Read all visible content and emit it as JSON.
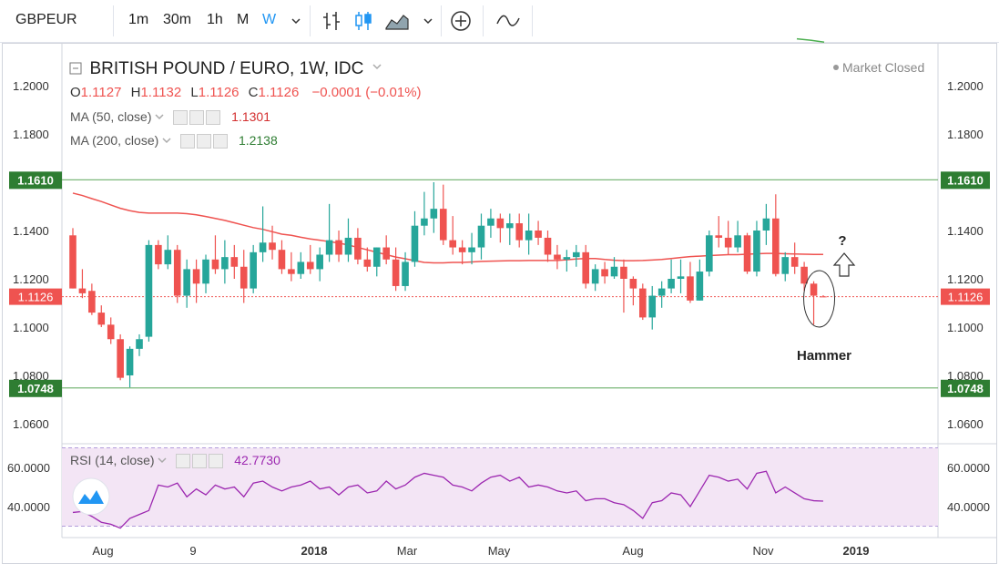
{
  "toolbar": {
    "symbol": "GBPEUR",
    "timeframes": [
      "1m",
      "30m",
      "1h",
      "M",
      "W"
    ],
    "active_timeframe": "W",
    "icons": [
      "chevron-down-icon",
      "bar-chart-icon",
      "candles-icon",
      "area-chart-icon",
      "chevron-down-icon",
      "add-compare-icon",
      "indicators-icon"
    ]
  },
  "legend": {
    "title": "BRITISH POUND / EURO, 1W, IDC",
    "market_status": "Market Closed",
    "ohlc": {
      "o_label": "O",
      "o": "1.1127",
      "h_label": "H",
      "h": "1.1132",
      "l_label": "L",
      "l": "1.1126",
      "c_label": "C",
      "c": "1.1126",
      "change": "−0.0001 (−0.01%)"
    },
    "ma50_label": "MA (50, close)",
    "ma50_value": "1.1301",
    "ma200_label": "MA (200, close)",
    "ma200_value": "1.2138",
    "rsi_label": "RSI (14, close)",
    "rsi_value": "42.7730"
  },
  "colors": {
    "up": "#26a69a",
    "down": "#ef5350",
    "ma50": "#ef5350",
    "ma200": "#4caf50",
    "level": "#2e7d32",
    "rsi": "#9c27b0",
    "rsi_band": "#f3e5f5"
  },
  "chart_data": {
    "type": "candlestick",
    "ylim": [
      1.05,
      1.22
    ],
    "price_ticks": [
      "1.2000",
      "1.1800",
      "1.1400",
      "1.1200",
      "1.1000",
      "1.0800",
      "1.0600"
    ],
    "levels": [
      {
        "label": "1.1610",
        "value": 1.161
      },
      {
        "label": "1.0748",
        "value": 1.0748
      }
    ],
    "last_price": {
      "label": "1.1126",
      "value": 1.1126
    },
    "x_ticks": [
      "Aug",
      "9",
      "2018",
      "Mar",
      "May",
      "Aug",
      "Nov",
      "2019"
    ],
    "annotations": {
      "question": "?",
      "hammer": "Hammer"
    },
    "candles": [
      {
        "o": 1.138,
        "h": 1.141,
        "l": 1.116,
        "c": 1.116
      },
      {
        "o": 1.116,
        "h": 1.124,
        "l": 1.112,
        "c": 1.114
      },
      {
        "o": 1.115,
        "h": 1.118,
        "l": 1.105,
        "c": 1.106
      },
      {
        "o": 1.106,
        "h": 1.109,
        "l": 1.1,
        "c": 1.101
      },
      {
        "o": 1.101,
        "h": 1.104,
        "l": 1.093,
        "c": 1.095
      },
      {
        "o": 1.095,
        "h": 1.097,
        "l": 1.078,
        "c": 1.079
      },
      {
        "o": 1.08,
        "h": 1.092,
        "l": 1.075,
        "c": 1.091
      },
      {
        "o": 1.091,
        "h": 1.097,
        "l": 1.088,
        "c": 1.095
      },
      {
        "o": 1.096,
        "h": 1.136,
        "l": 1.094,
        "c": 1.134
      },
      {
        "o": 1.134,
        "h": 1.136,
        "l": 1.124,
        "c": 1.126
      },
      {
        "o": 1.126,
        "h": 1.138,
        "l": 1.124,
        "c": 1.132
      },
      {
        "o": 1.132,
        "h": 1.134,
        "l": 1.11,
        "c": 1.113
      },
      {
        "o": 1.113,
        "h": 1.128,
        "l": 1.108,
        "c": 1.124
      },
      {
        "o": 1.124,
        "h": 1.128,
        "l": 1.11,
        "c": 1.118
      },
      {
        "o": 1.118,
        "h": 1.13,
        "l": 1.114,
        "c": 1.128
      },
      {
        "o": 1.128,
        "h": 1.138,
        "l": 1.122,
        "c": 1.124
      },
      {
        "o": 1.124,
        "h": 1.136,
        "l": 1.118,
        "c": 1.129
      },
      {
        "o": 1.129,
        "h": 1.134,
        "l": 1.12,
        "c": 1.125
      },
      {
        "o": 1.125,
        "h": 1.132,
        "l": 1.11,
        "c": 1.116
      },
      {
        "o": 1.116,
        "h": 1.134,
        "l": 1.114,
        "c": 1.131
      },
      {
        "o": 1.131,
        "h": 1.15,
        "l": 1.127,
        "c": 1.135
      },
      {
        "o": 1.135,
        "h": 1.142,
        "l": 1.128,
        "c": 1.132
      },
      {
        "o": 1.132,
        "h": 1.136,
        "l": 1.122,
        "c": 1.124
      },
      {
        "o": 1.124,
        "h": 1.131,
        "l": 1.119,
        "c": 1.122
      },
      {
        "o": 1.122,
        "h": 1.131,
        "l": 1.12,
        "c": 1.127
      },
      {
        "o": 1.127,
        "h": 1.134,
        "l": 1.122,
        "c": 1.124
      },
      {
        "o": 1.124,
        "h": 1.133,
        "l": 1.119,
        "c": 1.13
      },
      {
        "o": 1.13,
        "h": 1.151,
        "l": 1.127,
        "c": 1.136
      },
      {
        "o": 1.136,
        "h": 1.14,
        "l": 1.127,
        "c": 1.13
      },
      {
        "o": 1.13,
        "h": 1.145,
        "l": 1.127,
        "c": 1.137
      },
      {
        "o": 1.137,
        "h": 1.141,
        "l": 1.126,
        "c": 1.128
      },
      {
        "o": 1.128,
        "h": 1.133,
        "l": 1.123,
        "c": 1.125
      },
      {
        "o": 1.125,
        "h": 1.133,
        "l": 1.121,
        "c": 1.133
      },
      {
        "o": 1.133,
        "h": 1.138,
        "l": 1.126,
        "c": 1.128
      },
      {
        "o": 1.128,
        "h": 1.133,
        "l": 1.115,
        "c": 1.117
      },
      {
        "o": 1.117,
        "h": 1.131,
        "l": 1.115,
        "c": 1.127
      },
      {
        "o": 1.127,
        "h": 1.148,
        "l": 1.125,
        "c": 1.142
      },
      {
        "o": 1.142,
        "h": 1.156,
        "l": 1.138,
        "c": 1.145
      },
      {
        "o": 1.145,
        "h": 1.16,
        "l": 1.139,
        "c": 1.149
      },
      {
        "o": 1.149,
        "h": 1.159,
        "l": 1.134,
        "c": 1.136
      },
      {
        "o": 1.136,
        "h": 1.146,
        "l": 1.13,
        "c": 1.133
      },
      {
        "o": 1.133,
        "h": 1.136,
        "l": 1.126,
        "c": 1.131
      },
      {
        "o": 1.131,
        "h": 1.139,
        "l": 1.126,
        "c": 1.133
      },
      {
        "o": 1.133,
        "h": 1.147,
        "l": 1.128,
        "c": 1.142
      },
      {
        "o": 1.142,
        "h": 1.149,
        "l": 1.137,
        "c": 1.145
      },
      {
        "o": 1.145,
        "h": 1.147,
        "l": 1.135,
        "c": 1.141
      },
      {
        "o": 1.141,
        "h": 1.147,
        "l": 1.134,
        "c": 1.143
      },
      {
        "o": 1.143,
        "h": 1.147,
        "l": 1.133,
        "c": 1.136
      },
      {
        "o": 1.136,
        "h": 1.147,
        "l": 1.13,
        "c": 1.14
      },
      {
        "o": 1.14,
        "h": 1.144,
        "l": 1.134,
        "c": 1.137
      },
      {
        "o": 1.137,
        "h": 1.14,
        "l": 1.127,
        "c": 1.13
      },
      {
        "o": 1.13,
        "h": 1.134,
        "l": 1.124,
        "c": 1.128
      },
      {
        "o": 1.128,
        "h": 1.132,
        "l": 1.123,
        "c": 1.129
      },
      {
        "o": 1.129,
        "h": 1.134,
        "l": 1.125,
        "c": 1.131
      },
      {
        "o": 1.131,
        "h": 1.134,
        "l": 1.116,
        "c": 1.118
      },
      {
        "o": 1.118,
        "h": 1.126,
        "l": 1.115,
        "c": 1.124
      },
      {
        "o": 1.124,
        "h": 1.127,
        "l": 1.118,
        "c": 1.121
      },
      {
        "o": 1.121,
        "h": 1.129,
        "l": 1.12,
        "c": 1.125
      },
      {
        "o": 1.125,
        "h": 1.128,
        "l": 1.106,
        "c": 1.12
      },
      {
        "o": 1.12,
        "h": 1.121,
        "l": 1.109,
        "c": 1.116
      },
      {
        "o": 1.116,
        "h": 1.118,
        "l": 1.103,
        "c": 1.104
      },
      {
        "o": 1.104,
        "h": 1.117,
        "l": 1.099,
        "c": 1.113
      },
      {
        "o": 1.113,
        "h": 1.119,
        "l": 1.108,
        "c": 1.116
      },
      {
        "o": 1.116,
        "h": 1.128,
        "l": 1.114,
        "c": 1.12
      },
      {
        "o": 1.12,
        "h": 1.128,
        "l": 1.114,
        "c": 1.121
      },
      {
        "o": 1.121,
        "h": 1.127,
        "l": 1.11,
        "c": 1.111
      },
      {
        "o": 1.111,
        "h": 1.128,
        "l": 1.111,
        "c": 1.123
      },
      {
        "o": 1.123,
        "h": 1.14,
        "l": 1.121,
        "c": 1.138
      },
      {
        "o": 1.138,
        "h": 1.146,
        "l": 1.133,
        "c": 1.137
      },
      {
        "o": 1.137,
        "h": 1.144,
        "l": 1.13,
        "c": 1.133
      },
      {
        "o": 1.133,
        "h": 1.144,
        "l": 1.131,
        "c": 1.138
      },
      {
        "o": 1.138,
        "h": 1.139,
        "l": 1.122,
        "c": 1.123
      },
      {
        "o": 1.123,
        "h": 1.144,
        "l": 1.121,
        "c": 1.14
      },
      {
        "o": 1.14,
        "h": 1.151,
        "l": 1.134,
        "c": 1.145
      },
      {
        "o": 1.145,
        "h": 1.155,
        "l": 1.121,
        "c": 1.122
      },
      {
        "o": 1.122,
        "h": 1.131,
        "l": 1.119,
        "c": 1.129
      },
      {
        "o": 1.129,
        "h": 1.135,
        "l": 1.122,
        "c": 1.125
      },
      {
        "o": 1.125,
        "h": 1.127,
        "l": 1.115,
        "c": 1.118
      },
      {
        "o": 1.118,
        "h": 1.119,
        "l": 1.101,
        "c": 1.113
      },
      {
        "o": 1.1127,
        "h": 1.1132,
        "l": 1.1126,
        "c": 1.1126
      }
    ],
    "ma50": [
      1.1555,
      1.1545,
      1.1532,
      1.152,
      1.1506,
      1.1492,
      1.1482,
      1.1475,
      1.1472,
      1.1472,
      1.1472,
      1.1472,
      1.147,
      1.1465,
      1.1458,
      1.145,
      1.1442,
      1.1432,
      1.1422,
      1.1412,
      1.1405,
      1.1395,
      1.1385,
      1.138,
      1.1372,
      1.1365,
      1.136,
      1.1354,
      1.1348,
      1.134,
      1.133,
      1.132,
      1.131,
      1.13,
      1.129,
      1.1283,
      1.1275,
      1.1268,
      1.1266,
      1.1266,
      1.1268,
      1.1268,
      1.127,
      1.1272,
      1.1273,
      1.1274,
      1.1275,
      1.1275,
      1.1276,
      1.1276,
      1.1276,
      1.1276,
      1.1279,
      1.1282,
      1.1284,
      1.1284,
      1.128,
      1.1277,
      1.1275,
      1.1275,
      1.1276,
      1.1278,
      1.128,
      1.1284,
      1.1288,
      1.1292,
      1.1294,
      1.1296,
      1.1298,
      1.13,
      1.13,
      1.1302,
      1.1304,
      1.1305,
      1.1305,
      1.1304,
      1.1303,
      1.1302,
      1.1301,
      1.1301
    ],
    "ma200_tail": [
      1.2194,
      1.2188,
      1.218
    ],
    "rsi_ticks": [
      "60.0000",
      "40.0000"
    ],
    "rsi_ylim": [
      25,
      72
    ],
    "rsi_band": [
      30,
      70
    ],
    "rsi": [
      37,
      37.5,
      35,
      32,
      31,
      29,
      34,
      36,
      38,
      51,
      50,
      52,
      45,
      49,
      46,
      51,
      49,
      50,
      45,
      52,
      53,
      50,
      48,
      50,
      51,
      53,
      49,
      50,
      46,
      50,
      51,
      47,
      48,
      53,
      49,
      51,
      55,
      57,
      56,
      55,
      51,
      50,
      48,
      52,
      55,
      56,
      53,
      55,
      50,
      51,
      50,
      48,
      47,
      48,
      43,
      44,
      44,
      42,
      41,
      38,
      34,
      42,
      43,
      47,
      46,
      40,
      48,
      56,
      55,
      53,
      54,
      49,
      57,
      58,
      47,
      50,
      47,
      44,
      43,
      42.773
    ]
  }
}
